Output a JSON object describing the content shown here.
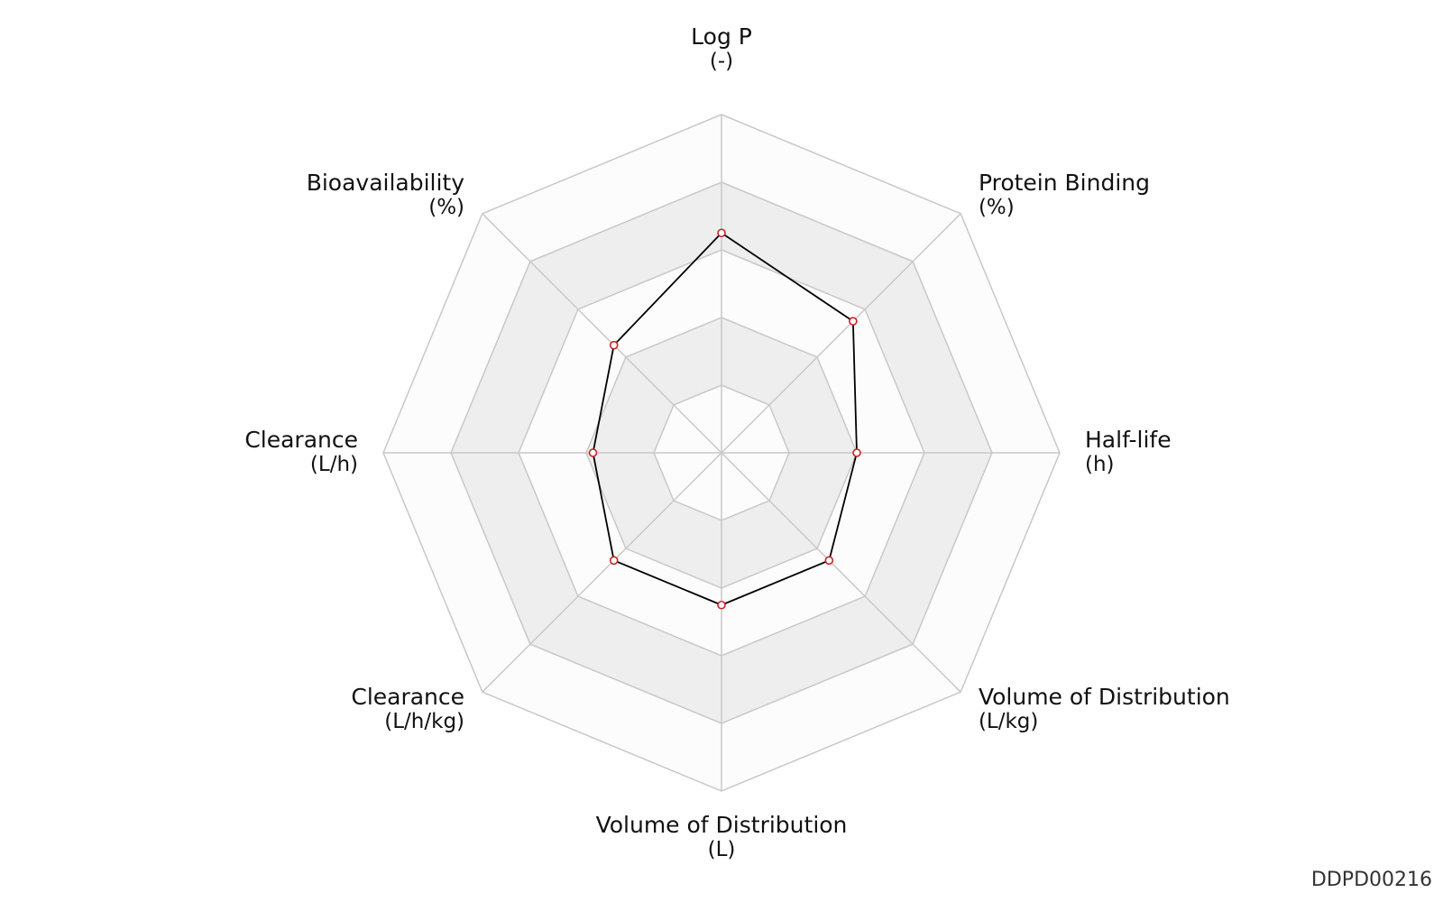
{
  "chart_data": {
    "type": "radar",
    "axes": [
      {
        "name": "Log P",
        "unit": "(-)"
      },
      {
        "name": "Protein Binding",
        "unit": "(%)"
      },
      {
        "name": "Half-life",
        "unit": "(h)"
      },
      {
        "name": "Volume of Distribution",
        "unit": "(L/kg)"
      },
      {
        "name": "Volume of Distribution",
        "unit": "(L)"
      },
      {
        "name": "Clearance",
        "unit": "(L/h/kg)"
      },
      {
        "name": "Clearance",
        "unit": "(L/h)"
      },
      {
        "name": "Bioavailability",
        "unit": "(%)"
      }
    ],
    "values": [
      0.65,
      0.55,
      0.4,
      0.45,
      0.45,
      0.45,
      0.38,
      0.45
    ],
    "rings": 5,
    "colors": {
      "line": "#000000",
      "marker_edge": "#cc2222",
      "marker_fill": "#ffffff",
      "grid": "#c8c8c8",
      "band_dark": "#eeeeee",
      "band_light": "#fcfcfc"
    }
  },
  "watermark": "DDPD00216"
}
